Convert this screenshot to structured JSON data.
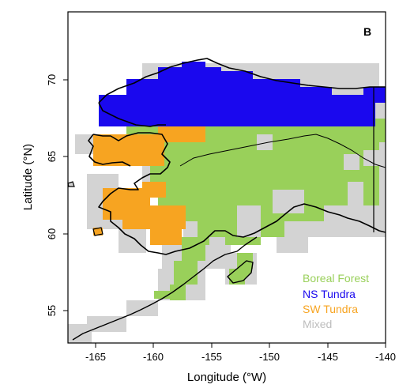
{
  "panel_label": "B",
  "axes": {
    "xlabel": "Longitude (°W)",
    "ylabel": "Latitude (°N)",
    "xlim": [
      -169,
      -140
    ],
    "ylim": [
      53,
      74.5
    ],
    "xticks": [
      -165,
      -160,
      -155,
      -150,
      -145,
      -140
    ],
    "yticks": [
      55,
      60,
      65,
      70
    ]
  },
  "legend": {
    "placement": "bottom-right",
    "items": [
      {
        "label": "Boreal Forest",
        "color": "#99d05a"
      },
      {
        "label": "NS Tundra",
        "color": "#1a08ee"
      },
      {
        "label": "SW Tundra",
        "color": "#f7a421"
      },
      {
        "label": "Mixed",
        "color": "#d3d3d3"
      }
    ]
  },
  "colors": {
    "boreal_forest": "#99d05a",
    "ns_tundra": "#1a08ee",
    "sw_tundra": "#f7a421",
    "mixed": "#d3d3d3",
    "coastline": "#000000",
    "border": "#000000"
  },
  "chart_data": {
    "type": "heatmap",
    "title": "B",
    "xlabel": "Longitude (°W)",
    "ylabel": "Latitude (°N)",
    "xlim": [
      -169,
      -140
    ],
    "ylim": [
      53,
      74.5
    ],
    "grid": false,
    "legend_position": "bottom-right",
    "categories": [
      "Boreal Forest",
      "NS Tundra",
      "SW Tundra",
      "Mixed"
    ],
    "regions": [
      {
        "class": "Mixed",
        "lon_range": [
          -167,
          -140
        ],
        "lat_range": [
          53,
          72
        ]
      },
      {
        "class": "Boreal Forest",
        "lon_range": [
          -160,
          -140
        ],
        "lat_range": [
          57.5,
          68
        ]
      },
      {
        "class": "NS Tundra",
        "lon_range": [
          -166,
          -140
        ],
        "lat_range": [
          66.8,
          71.5
        ]
      },
      {
        "class": "SW Tundra",
        "lon_range": [
          -166,
          -157
        ],
        "lat_range": [
          59,
          67
        ]
      }
    ]
  }
}
